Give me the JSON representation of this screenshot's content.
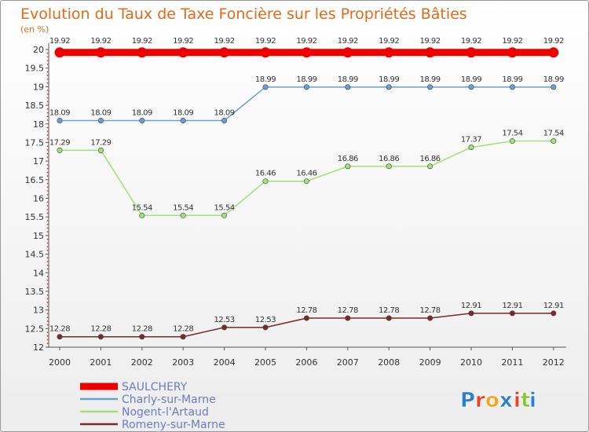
{
  "chart_data": {
    "type": "line",
    "title": "Evolution du Taux de Taxe Foncière sur les Propriétés Bâties",
    "ylabel": "(en %)",
    "xlabel": "",
    "x": [
      "2000",
      "2001",
      "2002",
      "2003",
      "2004",
      "2005",
      "2006",
      "2007",
      "2008",
      "2009",
      "2010",
      "2011",
      "2012"
    ],
    "yticks": [
      "12",
      "12.5",
      "13",
      "13.5",
      "14",
      "14.5",
      "15",
      "15.5",
      "16",
      "16.5",
      "17",
      "17.5",
      "18",
      "18.5",
      "19",
      "19.5",
      "20"
    ],
    "ylim": [
      12,
      20
    ],
    "grid": false,
    "legend_position": "bottom-left",
    "series": [
      {
        "name": "SAULCHERY",
        "color": "#ee0000",
        "values": [
          19.92,
          19.92,
          19.92,
          19.92,
          19.92,
          19.92,
          19.92,
          19.92,
          19.92,
          19.92,
          19.92,
          19.92,
          19.92
        ],
        "labels": [
          "19.92",
          "19.92",
          "19.92",
          "19.92",
          "19.92",
          "19.92",
          "19.92",
          "19.92",
          "19.92",
          "19.92",
          "19.92",
          "19.92",
          "19.92"
        ]
      },
      {
        "name": "Charly-sur-Marne",
        "color": "#6b9ed1",
        "values": [
          18.09,
          18.09,
          18.09,
          18.09,
          18.09,
          18.99,
          18.99,
          18.99,
          18.99,
          18.99,
          18.99,
          18.99,
          18.99
        ],
        "labels": [
          "18.09",
          "18.09",
          "18.09",
          "18.09",
          "18.09",
          "18.99",
          "18.99",
          "18.99",
          "18.99",
          "18.99",
          "18.99",
          "18.99",
          "18.99"
        ]
      },
      {
        "name": "Nogent-l'Artaud",
        "color": "#a3e07a",
        "values": [
          17.29,
          17.29,
          15.54,
          15.54,
          15.54,
          16.46,
          16.46,
          16.86,
          16.86,
          16.86,
          17.37,
          17.54,
          17.54
        ],
        "labels": [
          "17.29",
          "17.29",
          "15.54",
          "15.54",
          "15.54",
          "16.46",
          "16.46",
          "16.86",
          "16.86",
          "16.86",
          "17.37",
          "17.54",
          "17.54"
        ]
      },
      {
        "name": "Romeny-sur-Marne",
        "color": "#7a2a2a",
        "values": [
          12.28,
          12.28,
          12.28,
          12.28,
          12.53,
          12.53,
          12.78,
          12.78,
          12.78,
          12.78,
          12.91,
          12.91,
          12.91
        ],
        "labels": [
          "12.28",
          "12.28",
          "12.28",
          "12.28",
          "12.53",
          "12.53",
          "12.78",
          "12.78",
          "12.78",
          "12.78",
          "12.91",
          "12.91",
          "12.91"
        ]
      }
    ]
  },
  "logo": {
    "letters": [
      "P",
      "r",
      "o",
      "x",
      "i",
      "t",
      "i"
    ],
    "colors": [
      "#2a7fd4",
      "#e8432b",
      "#f3a51e",
      "#2a7fd4",
      "#e8432b",
      "#8cc63f",
      "#2a7fd4"
    ]
  }
}
